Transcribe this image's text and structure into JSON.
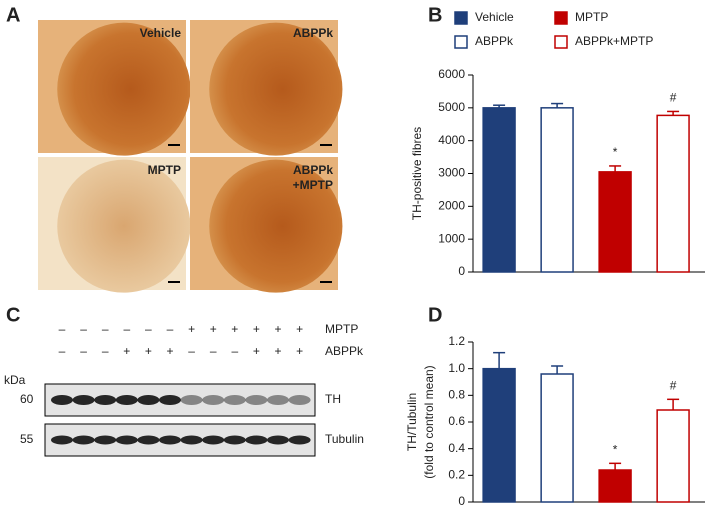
{
  "panel_labels": [
    "A",
    "B",
    "C",
    "D"
  ],
  "micrographs": [
    {
      "label": [
        "Vehicle"
      ]
    },
    {
      "label": [
        "ABPPk"
      ]
    },
    {
      "label": [
        "MPTP"
      ]
    },
    {
      "label": [
        "ABPPk",
        "+MPTP"
      ]
    }
  ],
  "blot": {
    "treatments": [
      {
        "name": "MPTP",
        "signs": [
          "–",
          "–",
          "–",
          "–",
          "–",
          "–",
          "+",
          "+",
          "+",
          "+",
          "+",
          "+"
        ]
      },
      {
        "name": "ABPPk",
        "signs": [
          "–",
          "–",
          "–",
          "+",
          "+",
          "+",
          "–",
          "–",
          "–",
          "+",
          "+",
          "+"
        ]
      }
    ],
    "unit": "kDa",
    "bands": [
      {
        "size": "60",
        "name": "TH"
      },
      {
        "size": "55",
        "name": "Tubulin"
      }
    ]
  },
  "chart_data": [
    {
      "type": "bar",
      "ylabel": [
        "TH-positive fibres"
      ],
      "categories": [
        "Vehicle",
        "ABPPk",
        "MPTP",
        "ABPPk+MPTP"
      ],
      "values": [
        5000,
        5000,
        3050,
        4770
      ],
      "errors": [
        80,
        130,
        180,
        120
      ],
      "annotations": [
        null,
        null,
        "*",
        "#"
      ],
      "colors": [
        "#1f3f7a",
        "#1f3f7a",
        "#c00000",
        "#c00000"
      ],
      "filled": [
        true,
        false,
        true,
        false
      ],
      "ylim": [
        0,
        6000
      ],
      "yticks": [
        0,
        1000,
        2000,
        3000,
        4000,
        5000,
        6000
      ],
      "legend": true
    },
    {
      "type": "bar",
      "ylabel": [
        "TH/Tubulin",
        "(fold to control mean)"
      ],
      "categories": [
        "Vehicle",
        "ABPPk",
        "MPTP",
        "ABPPk+MPTP"
      ],
      "values": [
        1.0,
        0.96,
        0.24,
        0.69
      ],
      "errors": [
        0.12,
        0.06,
        0.05,
        0.08
      ],
      "annotations": [
        null,
        null,
        "*",
        "#"
      ],
      "colors": [
        "#1f3f7a",
        "#1f3f7a",
        "#c00000",
        "#c00000"
      ],
      "filled": [
        true,
        false,
        true,
        false
      ],
      "ylim": [
        0,
        1.2
      ],
      "yticks": [
        0,
        0.2,
        0.4,
        0.6,
        0.8,
        {
          "value": 1,
          "label": "1.0"
        },
        1.2
      ],
      "legend": false
    }
  ]
}
